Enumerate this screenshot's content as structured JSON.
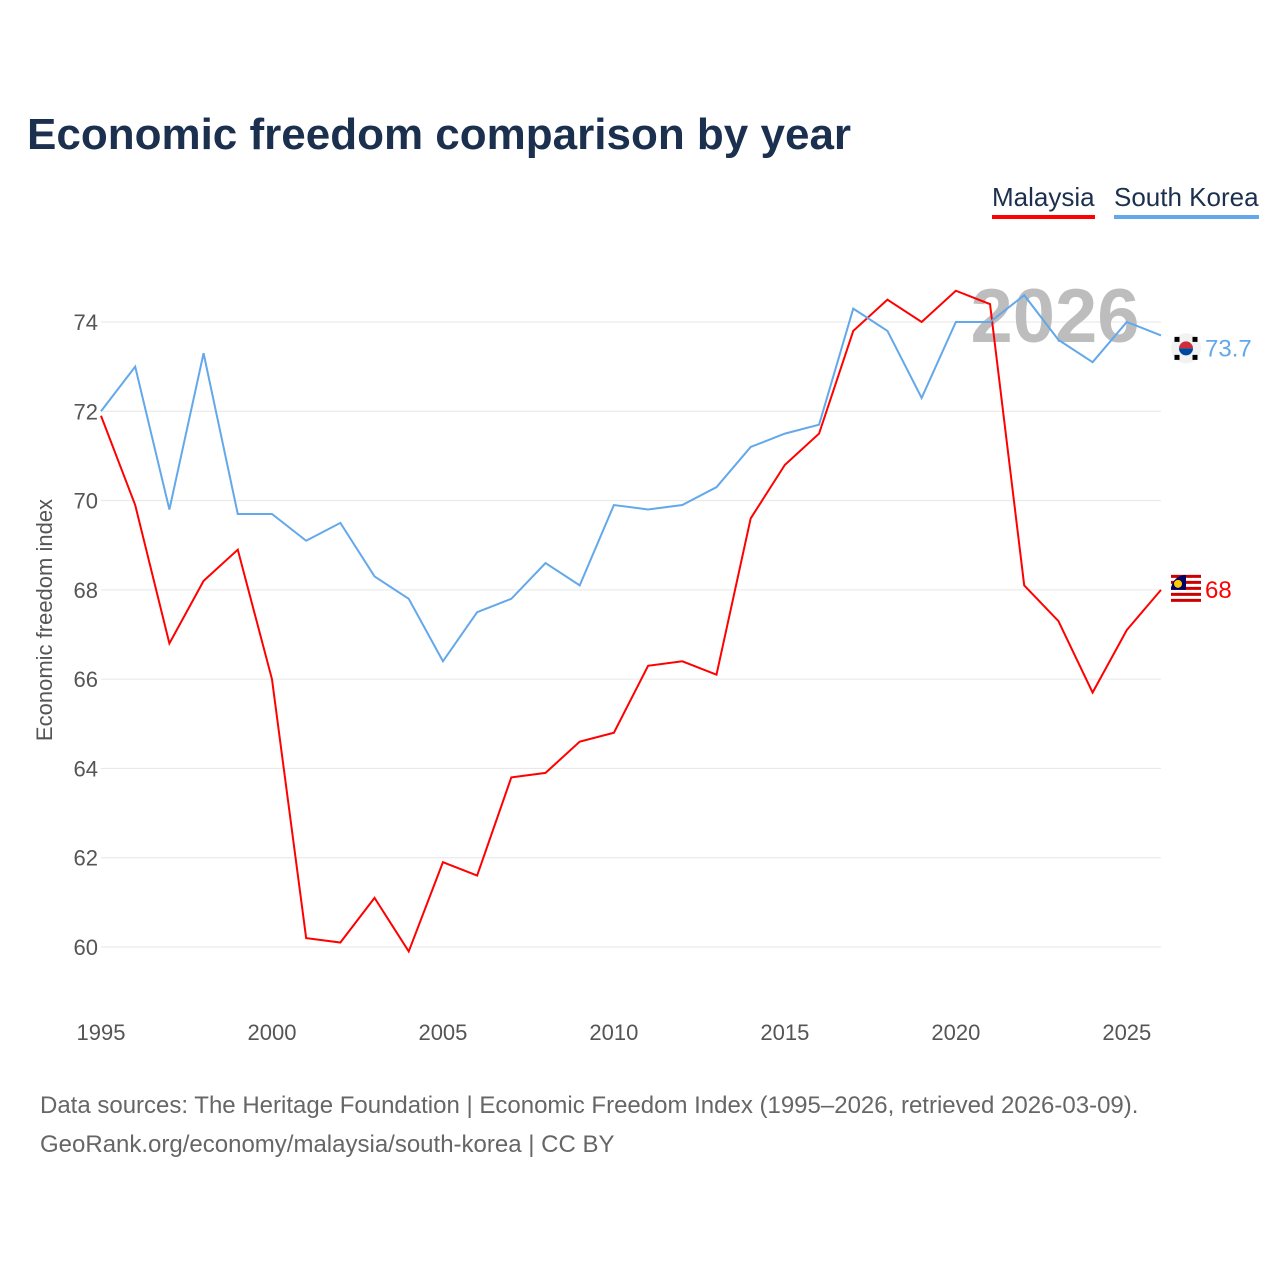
{
  "chart_data": {
    "type": "line",
    "title": "Economic freedom comparison by year",
    "xlabel": "",
    "ylabel": "Economic freedom index",
    "xlim": [
      1995,
      2026
    ],
    "ylim": [
      59,
      75.5
    ],
    "x_ticks": [
      1995,
      2000,
      2005,
      2010,
      2015,
      2020,
      2025
    ],
    "y_ticks": [
      60,
      62,
      64,
      66,
      68,
      70,
      72,
      74
    ],
    "grid": true,
    "legend_placement": "top-right",
    "watermark_year": "2026",
    "x": [
      1995,
      1996,
      1997,
      1998,
      1999,
      2000,
      2001,
      2002,
      2003,
      2004,
      2005,
      2006,
      2007,
      2008,
      2009,
      2010,
      2011,
      2012,
      2013,
      2014,
      2015,
      2016,
      2017,
      2018,
      2019,
      2020,
      2021,
      2022,
      2023,
      2024,
      2025,
      2026
    ],
    "series": [
      {
        "name": "Malaysia",
        "color": "#ff0000",
        "end_label": "68",
        "flag": "malaysia-flag-icon",
        "values": [
          71.9,
          69.9,
          66.8,
          68.2,
          68.9,
          66.0,
          60.2,
          60.1,
          61.1,
          59.9,
          61.9,
          61.6,
          63.8,
          63.9,
          64.6,
          64.8,
          66.3,
          66.4,
          66.1,
          69.6,
          70.8,
          71.5,
          73.8,
          74.5,
          74.0,
          74.7,
          74.4,
          68.1,
          67.3,
          65.7,
          67.1,
          68.0
        ]
      },
      {
        "name": "South Korea",
        "color": "#62a8ea",
        "end_label": "73.7",
        "flag": "south-korea-flag-icon",
        "values": [
          72.0,
          73.0,
          69.8,
          73.3,
          69.7,
          69.7,
          69.1,
          69.5,
          68.3,
          67.8,
          66.4,
          67.5,
          67.8,
          68.6,
          68.1,
          69.9,
          69.8,
          69.9,
          70.3,
          71.2,
          71.5,
          71.7,
          74.3,
          73.8,
          72.3,
          74.0,
          74.0,
          74.6,
          73.6,
          73.1,
          74.0,
          73.7
        ]
      }
    ]
  },
  "footer": {
    "line1": "Data sources: The Heritage Foundation | Economic Freedom Index (1995–2026, retrieved 2026-03-09).",
    "line2": "GeoRank.org/economy/malaysia/south-korea | CC BY"
  }
}
